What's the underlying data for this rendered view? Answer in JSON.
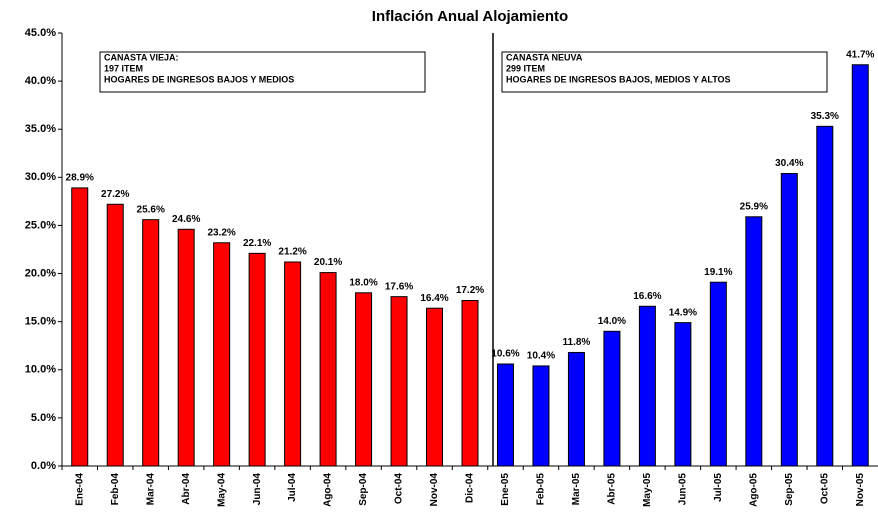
{
  "chart_data": {
    "type": "bar",
    "title": "Inflación Anual Alojamiento",
    "categories": [
      "Ene-04",
      "Feb-04",
      "Mar-04",
      "Abr-04",
      "May-04",
      "Jun-04",
      "Jul-04",
      "Ago-04",
      "Sep-04",
      "Oct-04",
      "Nov-04",
      "Dic-04",
      "Ene-05",
      "Feb-05",
      "Mar-05",
      "Abr-05",
      "May-05",
      "Jun-05",
      "Jul-05",
      "Ago-05",
      "Sep-05",
      "Oct-05",
      "Nov-05"
    ],
    "values": [
      28.9,
      27.2,
      25.6,
      24.6,
      23.2,
      22.1,
      21.2,
      20.1,
      18.0,
      17.6,
      16.4,
      17.2,
      10.6,
      10.4,
      11.8,
      14.0,
      16.6,
      14.9,
      19.1,
      25.9,
      30.4,
      35.3,
      41.7
    ],
    "value_labels": [
      "28.9%",
      "27.2%",
      "25.6%",
      "24.6%",
      "23.2%",
      "22.1%",
      "21.2%",
      "20.1%",
      "18.0%",
      "17.6%",
      "16.4%",
      "17.2%",
      "10.6%",
      "10.4%",
      "11.8%",
      "14.0%",
      "16.6%",
      "14.9%",
      "19.1%",
      "25.9%",
      "30.4%",
      "35.3%",
      "41.7%"
    ],
    "colors": [
      "#ff0000",
      "#ff0000",
      "#ff0000",
      "#ff0000",
      "#ff0000",
      "#ff0000",
      "#ff0000",
      "#ff0000",
      "#ff0000",
      "#ff0000",
      "#ff0000",
      "#ff0000",
      "#0000ff",
      "#0000ff",
      "#0000ff",
      "#0000ff",
      "#0000ff",
      "#0000ff",
      "#0000ff",
      "#0000ff",
      "#0000ff",
      "#0000ff",
      "#0000ff"
    ],
    "ylim": [
      0,
      45
    ],
    "yticks": [
      {
        "value": 0,
        "label": "0.0%"
      },
      {
        "value": 5,
        "label": "5.0%"
      },
      {
        "value": 10,
        "label": "10.0%"
      },
      {
        "value": 15,
        "label": "15.0%"
      },
      {
        "value": 20,
        "label": "20.0%"
      },
      {
        "value": 25,
        "label": "25.0%"
      },
      {
        "value": 30,
        "label": "30.0%"
      },
      {
        "value": 35,
        "label": "35.0%"
      },
      {
        "value": 40,
        "label": "40.0%"
      },
      {
        "value": 45,
        "label": "45.0%"
      }
    ],
    "annotations": [
      {
        "lines": [
          "CANASTA VIEJA:",
          "197 ITEM",
          "HOGARES DE INGRESOS BAJOS Y MEDIOS"
        ]
      },
      {
        "lines": [
          "CANASTA NEUVA",
          "299 ITEM",
          "HOGARES DE INGRESOS BAJOS, MEDIOS Y ALTOS"
        ]
      }
    ]
  }
}
